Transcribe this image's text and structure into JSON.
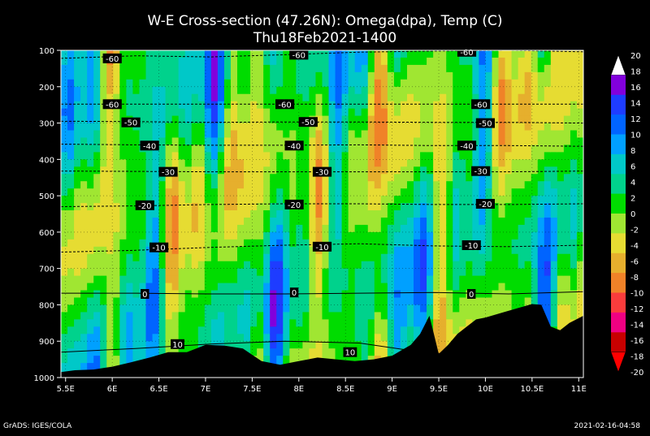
{
  "chart_data": {
    "type": "heatmap",
    "title": "W-E Cross-section (47.26N): Omega(dpa), Temp (C)",
    "subtitle": "Thu18Feb2021-1400",
    "x_ticks": [
      "5.5E",
      "6E",
      "6.5E",
      "7E",
      "7.5E",
      "8E",
      "8.5E",
      "9E",
      "9.5E",
      "10E",
      "10.5E",
      "11E"
    ],
    "x_values": [
      5.5,
      6,
      6.5,
      7,
      7.5,
      8,
      8.5,
      9,
      9.5,
      10,
      10.5,
      11
    ],
    "xlim": [
      5.45,
      11.05
    ],
    "y_ticks": [
      "100",
      "200",
      "300",
      "400",
      "500",
      "600",
      "700",
      "800",
      "900",
      "1000"
    ],
    "y_values": [
      100,
      200,
      300,
      400,
      500,
      600,
      700,
      800,
      900,
      1000
    ],
    "ylim": [
      100,
      1000
    ],
    "y_inverted": true,
    "colorbar": {
      "labels": [
        "20",
        "18",
        "16",
        "14",
        "12",
        "10",
        "8",
        "6",
        "4",
        "2",
        "0",
        "-2",
        "-4",
        "-6",
        "-8",
        "-10",
        "-12",
        "-14",
        "-16",
        "-18",
        "-20"
      ],
      "levels": [
        20,
        18,
        16,
        14,
        12,
        10,
        8,
        6,
        4,
        2,
        0,
        -2,
        -4,
        -6,
        -8,
        -10,
        -12,
        -14,
        -16,
        -18,
        -20
      ],
      "colors": [
        "#a000c8",
        "#8200dc",
        "#1e3cff",
        "#0064ff",
        "#00a0ff",
        "#00c8c8",
        "#00d28c",
        "#00dc00",
        "#a0e632",
        "#e6dc32",
        "#e6af2d",
        "#f08228",
        "#fa3c3c",
        "#f00082",
        "#c80000",
        "#ffffff"
      ]
    },
    "isotherms": [
      {
        "temp": -60,
        "label": "-60",
        "p": [
          122,
          115,
          118,
          112,
          105,
          102,
          100,
          104
        ],
        "labels_at": [
          [
            6.0,
            122
          ],
          [
            8.0,
            112
          ],
          [
            9.8,
            104
          ]
        ]
      },
      {
        "temp": -60,
        "label": "-60",
        "p": [
          248,
          248,
          248,
          248,
          248,
          248,
          248,
          248
        ],
        "labels_at": [
          [
            6.0,
            248
          ],
          [
            7.85,
            248
          ],
          [
            9.95,
            248
          ]
        ]
      },
      {
        "temp": -50,
        "label": "-50",
        "p": [
          295,
          296,
          298,
          297,
          297,
          298,
          298,
          300
        ],
        "labels_at": [
          [
            6.2,
            298
          ],
          [
            8.1,
            297
          ],
          [
            10.0,
            300
          ]
        ]
      },
      {
        "temp": -40,
        "label": "-40",
        "p": [
          358,
          360,
          361,
          361,
          360,
          362,
          362,
          364
        ],
        "labels_at": [
          [
            6.4,
            362
          ],
          [
            7.95,
            362
          ],
          [
            9.8,
            362
          ]
        ]
      },
      {
        "temp": -30,
        "label": "-30",
        "p": [
          432,
          433,
          434,
          434,
          434,
          434,
          434,
          432
        ],
        "labels_at": [
          [
            6.6,
            434
          ],
          [
            8.25,
            434
          ],
          [
            9.95,
            432
          ]
        ]
      },
      {
        "temp": -20,
        "label": "-20",
        "p": [
          530,
          528,
          524,
          522,
          522,
          524,
          524,
          522
        ],
        "labels_at": [
          [
            6.35,
            526
          ],
          [
            7.95,
            524
          ],
          [
            10.0,
            522
          ]
        ]
      },
      {
        "temp": -10,
        "label": "-10",
        "p": [
          655,
          650,
          642,
          636,
          632,
          638,
          640,
          636
        ],
        "labels_at": [
          [
            6.5,
            642
          ],
          [
            8.25,
            640
          ],
          [
            9.85,
            636
          ]
        ]
      },
      {
        "temp": 0,
        "label": "0",
        "p": [
          768,
          768,
          770,
          770,
          768,
          766,
          770,
          764
        ],
        "labels_at": [
          [
            6.35,
            770
          ],
          [
            7.95,
            766
          ],
          [
            9.85,
            770
          ]
        ]
      },
      {
        "temp": 10,
        "label": "10",
        "p": [
          930,
          920,
          908,
          900,
          905,
          935,
          925,
          900
        ],
        "labels_at": [
          [
            6.7,
            908
          ],
          [
            8.55,
            930
          ]
        ]
      }
    ],
    "terrain": {
      "x": [
        5.45,
        5.6,
        5.8,
        6.0,
        6.2,
        6.4,
        6.6,
        6.8,
        7.0,
        7.2,
        7.4,
        7.6,
        7.8,
        8.0,
        8.2,
        8.4,
        8.6,
        8.8,
        9.0,
        9.2,
        9.3,
        9.4,
        9.5,
        9.6,
        9.7,
        9.8,
        9.9,
        10.0,
        10.2,
        10.4,
        10.5,
        10.6,
        10.7,
        10.8,
        10.9,
        11.05
      ],
      "p": [
        985,
        980,
        978,
        970,
        958,
        945,
        930,
        930,
        910,
        912,
        920,
        955,
        965,
        955,
        945,
        950,
        955,
        950,
        940,
        910,
        880,
        830,
        935,
        910,
        880,
        860,
        840,
        835,
        820,
        805,
        798,
        800,
        860,
        870,
        850,
        830
      ]
    },
    "footer_left": "GrADS: IGES/COLA",
    "footer_right": "2021-02-16-04:58"
  }
}
